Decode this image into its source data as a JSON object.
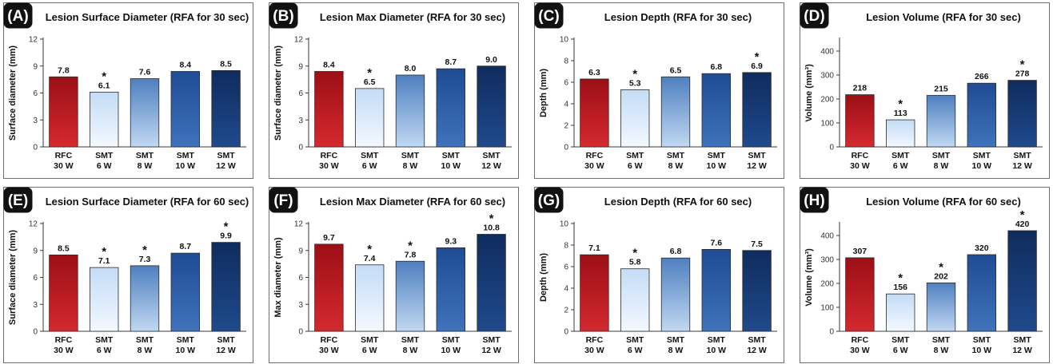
{
  "colors": {
    "rfc_top": "#9c0f16",
    "rfc_bottom": "#d42a2f",
    "smt6_top": "#c3dcf6",
    "smt6_bottom": "#f3f8ff",
    "smt8_top": "#4f80bf",
    "smt8_bottom": "#c0d8f2",
    "smt10_top": "#1f4c94",
    "smt10_bottom": "#3f73bb",
    "smt12_top": "#0f2c5e",
    "smt12_bottom": "#1f4a8c",
    "badge": "#111111"
  },
  "chart_data": [
    {
      "panel": "(A)",
      "type": "bar",
      "title": "Lesion Surface Diameter (RFA for 30 sec)",
      "ylabel": "Surface diameter (mm)",
      "ylim": [
        0,
        12
      ],
      "yticks": [
        0,
        3,
        6,
        9,
        12
      ],
      "categories": [
        [
          "RFC",
          "30 W"
        ],
        [
          "SMT",
          "6 W"
        ],
        [
          "SMT",
          "8 W"
        ],
        [
          "SMT",
          "10 W"
        ],
        [
          "SMT",
          "12 W"
        ]
      ],
      "values": [
        7.8,
        6.1,
        7.6,
        8.4,
        8.5
      ],
      "labels": [
        "7.8",
        "6.1",
        "7.6",
        "8.4",
        "8.5"
      ],
      "significant": [
        false,
        true,
        false,
        false,
        false
      ]
    },
    {
      "panel": "(B)",
      "type": "bar",
      "title": "Lesion Max Diameter (RFA for 30 sec)",
      "ylabel": "Surface diameter (mm)",
      "ylim": [
        0,
        12
      ],
      "yticks": [
        0,
        3,
        6,
        9,
        12
      ],
      "categories": [
        [
          "RFC",
          "30 W"
        ],
        [
          "SMT",
          "6 W"
        ],
        [
          "SMT",
          "8 W"
        ],
        [
          "SMT",
          "10 W"
        ],
        [
          "SMT",
          "12 W"
        ]
      ],
      "values": [
        8.4,
        6.5,
        8.0,
        8.7,
        9.0
      ],
      "labels": [
        "8.4",
        "6.5",
        "8.0",
        "8.7",
        "9.0"
      ],
      "significant": [
        false,
        true,
        false,
        false,
        false
      ]
    },
    {
      "panel": "(C)",
      "type": "bar",
      "title": "Lesion Depth (RFA for 30 sec)",
      "ylabel": "Depth (mm)",
      "ylim": [
        0,
        10
      ],
      "yticks": [
        0,
        2,
        4,
        6,
        8,
        10
      ],
      "categories": [
        [
          "RFC",
          "30 W"
        ],
        [
          "SMT",
          "6 W"
        ],
        [
          "SMT",
          "8 W"
        ],
        [
          "SMT",
          "10 W"
        ],
        [
          "SMT",
          "12 W"
        ]
      ],
      "values": [
        6.3,
        5.3,
        6.5,
        6.8,
        6.9
      ],
      "labels": [
        "6.3",
        "5.3",
        "6.5",
        "6.8",
        "6.9"
      ],
      "significant": [
        false,
        true,
        false,
        false,
        true
      ]
    },
    {
      "panel": "(D)",
      "type": "bar",
      "title": "Lesion Volume (RFA for 30 sec)",
      "ylabel": "Volume (mm³)",
      "ylim": [
        0,
        450
      ],
      "yticks": [
        0,
        100,
        200,
        300,
        400
      ],
      "categories": [
        [
          "RFC",
          "30 W"
        ],
        [
          "SMT",
          "6 W"
        ],
        [
          "SMT",
          "8 W"
        ],
        [
          "SMT",
          "10 W"
        ],
        [
          "SMT",
          "12 W"
        ]
      ],
      "values": [
        218,
        113,
        215,
        266,
        278
      ],
      "labels": [
        "218",
        "113",
        "215",
        "266",
        "278"
      ],
      "significant": [
        false,
        true,
        false,
        false,
        true
      ]
    },
    {
      "panel": "(E)",
      "type": "bar",
      "title": "Lesion Surface Diameter (RFA for 60 sec)",
      "ylabel": "Surface diameter (mm)",
      "ylim": [
        0,
        12
      ],
      "yticks": [
        0,
        3,
        6,
        9,
        12
      ],
      "categories": [
        [
          "RFC",
          "30 W"
        ],
        [
          "SMT",
          "6 W"
        ],
        [
          "SMT",
          "8 W"
        ],
        [
          "SMT",
          "10 W"
        ],
        [
          "SMT",
          "12 W"
        ]
      ],
      "values": [
        8.5,
        7.1,
        7.3,
        8.7,
        9.9
      ],
      "labels": [
        "8.5",
        "7.1",
        "7.3",
        "8.7",
        "9.9"
      ],
      "significant": [
        false,
        true,
        true,
        false,
        true
      ]
    },
    {
      "panel": "(F)",
      "type": "bar",
      "title": "Lesion Max Diameter (RFA for 60 sec)",
      "ylabel": "Max diameter (mm)",
      "ylim": [
        0,
        12
      ],
      "yticks": [
        0,
        3,
        6,
        9,
        12
      ],
      "categories": [
        [
          "RFC",
          "30 W"
        ],
        [
          "SMT",
          "6 W"
        ],
        [
          "SMT",
          "8 W"
        ],
        [
          "SMT",
          "10 W"
        ],
        [
          "SMT",
          "12 W"
        ]
      ],
      "values": [
        9.7,
        7.4,
        7.8,
        9.3,
        10.8
      ],
      "labels": [
        "9.7",
        "7.4",
        "7.8",
        "9.3",
        "10.8"
      ],
      "significant": [
        false,
        true,
        true,
        false,
        true
      ]
    },
    {
      "panel": "(G)",
      "type": "bar",
      "title": "Lesion Depth (RFA for 60 sec)",
      "ylabel": "Depth (mm)",
      "ylim": [
        0,
        10
      ],
      "yticks": [
        0,
        2,
        4,
        6,
        8,
        10
      ],
      "categories": [
        [
          "RFC",
          "30 W"
        ],
        [
          "SMT",
          "6 W"
        ],
        [
          "SMT",
          "8 W"
        ],
        [
          "SMT",
          "10 W"
        ],
        [
          "SMT",
          "12 W"
        ]
      ],
      "values": [
        7.1,
        5.8,
        6.8,
        7.6,
        7.5
      ],
      "labels": [
        "7.1",
        "5.8",
        "6.8",
        "7.6",
        "7.5"
      ],
      "significant": [
        false,
        true,
        false,
        false,
        false
      ]
    },
    {
      "panel": "(H)",
      "type": "bar",
      "title": "Lesion Volume (RFA for 60 sec)",
      "ylabel": "Volume (mm³)",
      "ylim": [
        0,
        450
      ],
      "yticks": [
        0,
        100,
        200,
        300,
        400
      ],
      "categories": [
        [
          "RFC",
          "30 W"
        ],
        [
          "SMT",
          "6 W"
        ],
        [
          "SMT",
          "8 W"
        ],
        [
          "SMT",
          "10 W"
        ],
        [
          "SMT",
          "12 W"
        ]
      ],
      "values": [
        307,
        156,
        202,
        320,
        420
      ],
      "labels": [
        "307",
        "156",
        "202",
        "320",
        "420"
      ],
      "significant": [
        false,
        true,
        true,
        false,
        true
      ]
    }
  ]
}
